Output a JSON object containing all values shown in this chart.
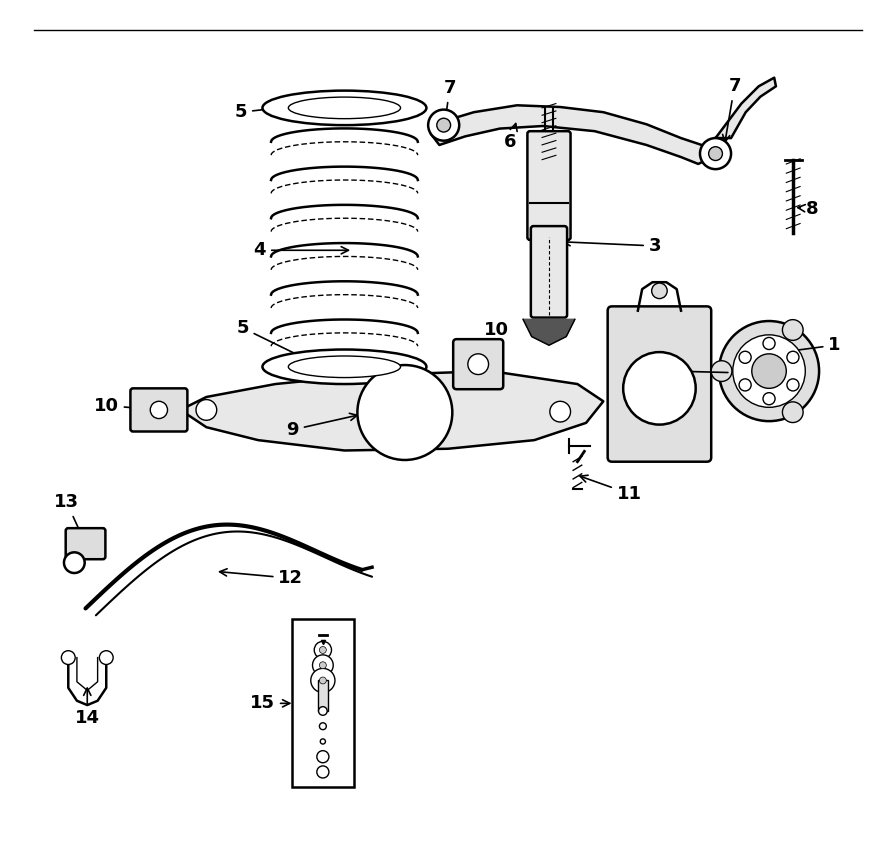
{
  "bg_color": "#ffffff",
  "line_color": "#000000",
  "fig_width": 8.96,
  "fig_height": 8.63,
  "dpi": 100
}
